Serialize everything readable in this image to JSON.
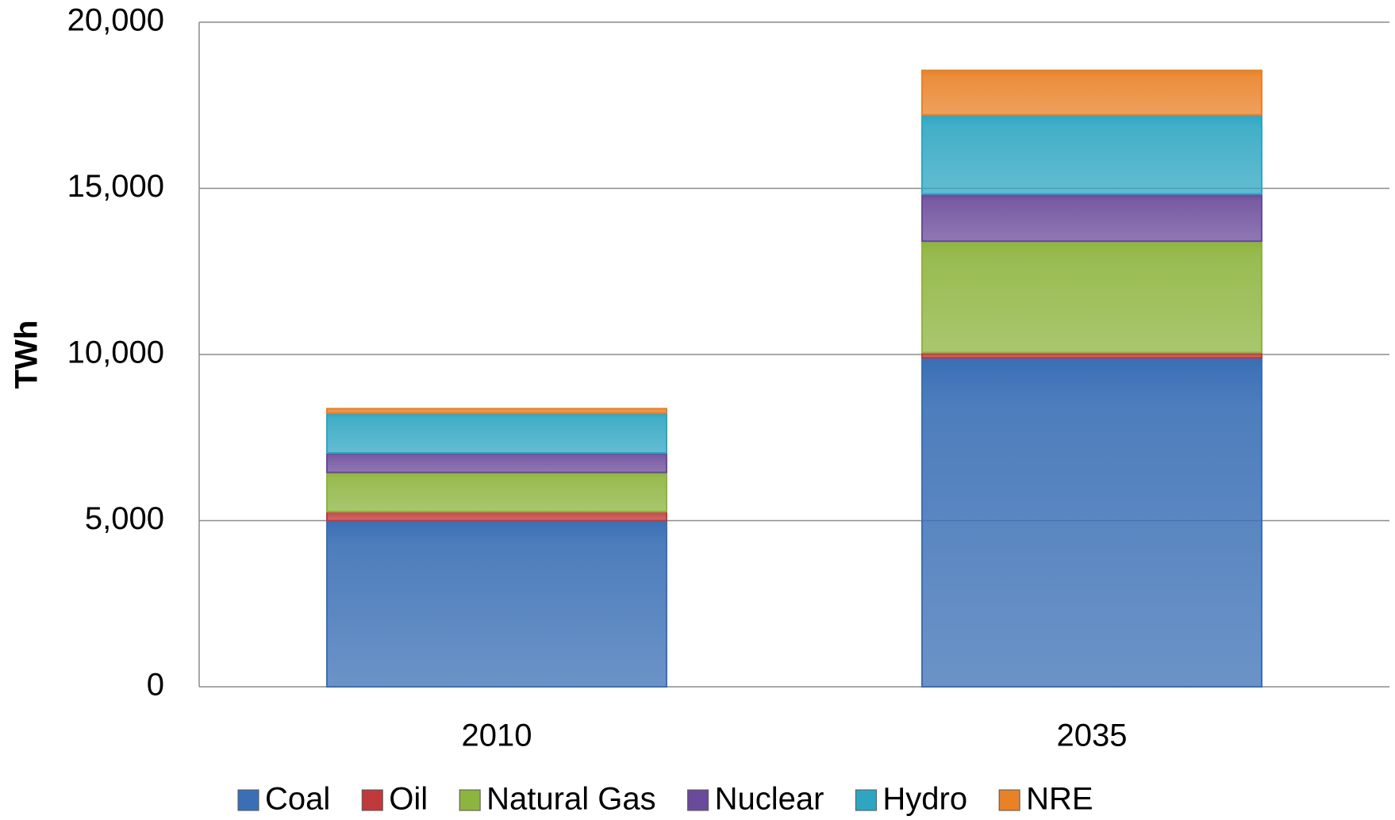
{
  "chart_data": {
    "type": "stacked_bar",
    "y_label": "TWh",
    "categories": [
      "2010",
      "2035"
    ],
    "series": [
      {
        "name": "Coal",
        "color": "#3a6fb5",
        "values": [
          5000,
          9900
        ]
      },
      {
        "name": "Oil",
        "color": "#c0393b",
        "values": [
          270,
          160
        ]
      },
      {
        "name": "Natural Gas",
        "color": "#8db43e",
        "values": [
          1180,
          3350
        ]
      },
      {
        "name": "Nuclear",
        "color": "#6a4a9a",
        "values": [
          590,
          1420
        ]
      },
      {
        "name": "Hydro",
        "color": "#2ea6c2",
        "values": [
          1200,
          2380
        ]
      },
      {
        "name": "NRE",
        "color": "#e98127",
        "values": [
          130,
          1340
        ]
      }
    ],
    "ylim": [
      0,
      20000
    ],
    "yticks": [
      {
        "value": 0,
        "label": "0"
      },
      {
        "value": 5000,
        "label": "5,000"
      },
      {
        "value": 10000,
        "label": "10,000"
      },
      {
        "value": 15000,
        "label": "15,000"
      },
      {
        "value": 20000,
        "label": "20,000"
      }
    ],
    "grid": true,
    "legend": "bottom"
  }
}
